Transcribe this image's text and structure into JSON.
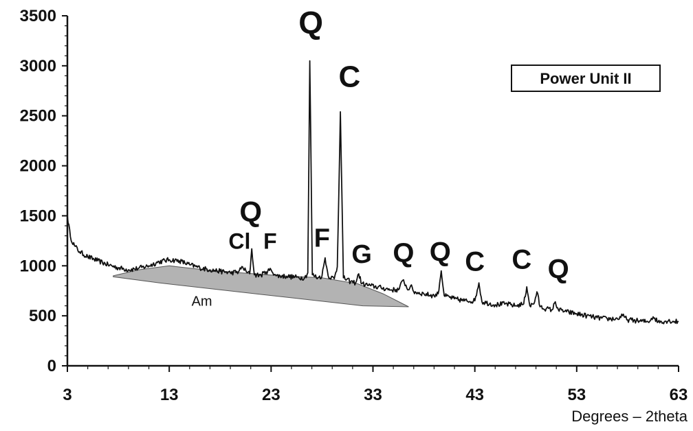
{
  "chart_data": {
    "type": "line",
    "title": "",
    "legend_label": "Power Unit II",
    "legend_position": "top-right",
    "xlabel": "Degrees – 2theta",
    "ylabel": "",
    "xlim": [
      3,
      63
    ],
    "ylim": [
      0,
      3500
    ],
    "xticks": [
      "3",
      "13",
      "23",
      "33",
      "43",
      "53",
      "63"
    ],
    "yticks": [
      "0",
      "500",
      "1000",
      "1500",
      "2000",
      "2500",
      "3000",
      "3500"
    ],
    "grid": false,
    "series": [
      {
        "points": [
          [
            3.0,
            1500
          ],
          [
            3.3,
            1290
          ],
          [
            3.7,
            1200
          ],
          [
            4.2,
            1140
          ],
          [
            5.0,
            1090
          ],
          [
            6.0,
            1050
          ],
          [
            7.0,
            1010
          ],
          [
            8.0,
            980
          ],
          [
            9.0,
            960
          ],
          [
            10.0,
            975
          ],
          [
            11.0,
            1000
          ],
          [
            12.0,
            1040
          ],
          [
            13.0,
            1060
          ],
          [
            14.0,
            1050
          ],
          [
            15.0,
            1010
          ],
          [
            16.0,
            980
          ],
          [
            17.0,
            960
          ],
          [
            18.0,
            945
          ],
          [
            19.0,
            930
          ],
          [
            19.8,
            940
          ],
          [
            20.2,
            990
          ],
          [
            20.6,
            935
          ],
          [
            20.9,
            920
          ],
          [
            21.1,
            1170
          ],
          [
            21.35,
            910
          ],
          [
            22.0,
            905
          ],
          [
            22.5,
            940
          ],
          [
            23.0,
            960
          ],
          [
            23.5,
            900
          ],
          [
            24.5,
            895
          ],
          [
            25.5,
            885
          ],
          [
            26.3,
            880
          ],
          [
            26.6,
            930
          ],
          [
            26.8,
            3050
          ],
          [
            27.05,
            910
          ],
          [
            27.6,
            880
          ],
          [
            28.0,
            900
          ],
          [
            28.3,
            1080
          ],
          [
            28.6,
            900
          ],
          [
            29.2,
            870
          ],
          [
            29.5,
            990
          ],
          [
            29.8,
            2540
          ],
          [
            30.1,
            880
          ],
          [
            30.8,
            840
          ],
          [
            31.3,
            830
          ],
          [
            31.6,
            920
          ],
          [
            31.9,
            820
          ],
          [
            32.8,
            800
          ],
          [
            33.8,
            780
          ],
          [
            34.8,
            760
          ],
          [
            35.5,
            760
          ],
          [
            36.0,
            860
          ],
          [
            36.4,
            760
          ],
          [
            36.7,
            800
          ],
          [
            37.0,
            740
          ],
          [
            38.0,
            720
          ],
          [
            39.0,
            700
          ],
          [
            39.4,
            720
          ],
          [
            39.7,
            950
          ],
          [
            40.0,
            700
          ],
          [
            41.0,
            670
          ],
          [
            42.0,
            650
          ],
          [
            43.0,
            650
          ],
          [
            43.4,
            830
          ],
          [
            43.7,
            640
          ],
          [
            45.0,
            610
          ],
          [
            46.0,
            620
          ],
          [
            47.0,
            600
          ],
          [
            47.8,
            620
          ],
          [
            48.1,
            790
          ],
          [
            48.4,
            600
          ],
          [
            48.8,
            620
          ],
          [
            49.1,
            740
          ],
          [
            49.4,
            590
          ],
          [
            50.0,
            570
          ],
          [
            50.6,
            560
          ],
          [
            50.9,
            640
          ],
          [
            51.2,
            560
          ],
          [
            52.0,
            540
          ],
          [
            53.0,
            520
          ],
          [
            54.0,
            500
          ],
          [
            55.0,
            480
          ],
          [
            56.0,
            470
          ],
          [
            57.0,
            470
          ],
          [
            57.5,
            500
          ],
          [
            58.0,
            460
          ],
          [
            59.0,
            450
          ],
          [
            60.0,
            440
          ],
          [
            60.5,
            490
          ],
          [
            61.0,
            440
          ],
          [
            62.0,
            450
          ],
          [
            63.0,
            440
          ]
        ]
      }
    ],
    "amorphous_hump": {
      "label": "Am",
      "polygon": [
        [
          7.5,
          900
        ],
        [
          10.0,
          960
        ],
        [
          13.0,
          1000
        ],
        [
          16.0,
          965
        ],
        [
          20.0,
          930
        ],
        [
          24.0,
          900
        ],
        [
          28.0,
          880
        ],
        [
          31.5,
          820
        ],
        [
          34.0,
          720
        ],
        [
          36.5,
          590
        ],
        [
          32.0,
          600
        ],
        [
          25.0,
          680
        ],
        [
          18.0,
          760
        ],
        [
          12.0,
          830
        ],
        [
          7.5,
          890
        ]
      ]
    },
    "peak_labels": [
      {
        "text": "Cl",
        "x": 19.9,
        "y": 1170,
        "size": 32
      },
      {
        "text": "Q",
        "x": 21.0,
        "y": 1440,
        "size": 42
      },
      {
        "text": "F",
        "x": 22.9,
        "y": 1170,
        "size": 32
      },
      {
        "text": "Q",
        "x": 26.9,
        "y": 3320,
        "size": 46
      },
      {
        "text": "F",
        "x": 28.0,
        "y": 1190,
        "size": 38
      },
      {
        "text": "C",
        "x": 30.7,
        "y": 2790,
        "size": 44
      },
      {
        "text": "G",
        "x": 31.9,
        "y": 1030,
        "size": 38
      },
      {
        "text": "Q",
        "x": 36.0,
        "y": 1040,
        "size": 40
      },
      {
        "text": "Q",
        "x": 39.6,
        "y": 1050,
        "size": 40
      },
      {
        "text": "C",
        "x": 43.0,
        "y": 950,
        "size": 40
      },
      {
        "text": "C",
        "x": 47.6,
        "y": 970,
        "size": 40
      },
      {
        "text": "Q",
        "x": 51.2,
        "y": 880,
        "size": 40
      }
    ]
  }
}
